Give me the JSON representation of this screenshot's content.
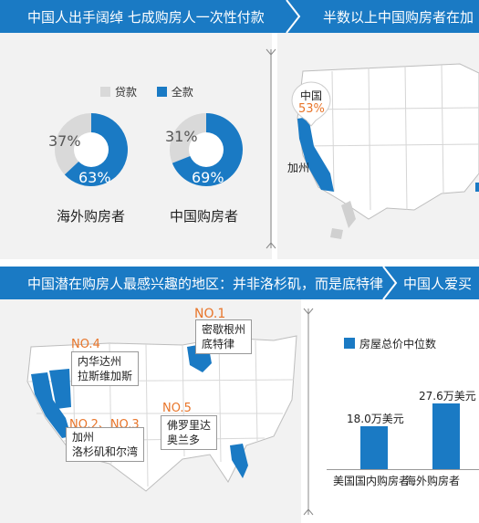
{
  "section1": {
    "title": "中国人出手阔绰 七成购房人一次性付款",
    "legend": {
      "loan": "贷款",
      "cash": "全款"
    },
    "colors": {
      "loan": "#d9d9d9",
      "cash": "#1a7ac4"
    }
  },
  "section2": {
    "title": "半数以上中国购房者在加",
    "bubble_label": "中国",
    "bubble_value": "53%",
    "state_label": "加州"
  },
  "section3": {
    "title": "中国潜在购房人最感兴趣的地区：并非洛杉矶，而是底特律",
    "no1": {
      "rank": "NO.1",
      "line1": "密歇根州",
      "line2": "底特律"
    },
    "no4": {
      "rank": "NO.4",
      "line1": "内华达州",
      "line2": "拉斯维加斯"
    },
    "no23": {
      "rank": "NO.2、NO.3",
      "line1": "加州",
      "line2": "洛杉矶和尔湾"
    },
    "no5": {
      "rank": "NO.5",
      "line1": "佛罗里达",
      "line2": "奥兰多"
    }
  },
  "section4": {
    "title": "中国人爱买"
  },
  "chart_data": [
    {
      "type": "pie",
      "title": "海外购房者",
      "labels": [
        "贷款",
        "全款"
      ],
      "values": [
        37,
        63
      ],
      "value_labels": [
        "37%",
        "63%"
      ]
    },
    {
      "type": "pie",
      "title": "中国购房者",
      "labels": [
        "贷款",
        "全款"
      ],
      "values": [
        31,
        69
      ],
      "value_labels": [
        "31%",
        "69%"
      ]
    },
    {
      "type": "bar",
      "legend": "房屋总价中位数",
      "categories": [
        "美国国内购房者",
        "海外购房者"
      ],
      "values": [
        18.0,
        27.6
      ],
      "value_labels": [
        "18.0万美元",
        "27.6万美元"
      ],
      "unit": "万美元"
    }
  ]
}
